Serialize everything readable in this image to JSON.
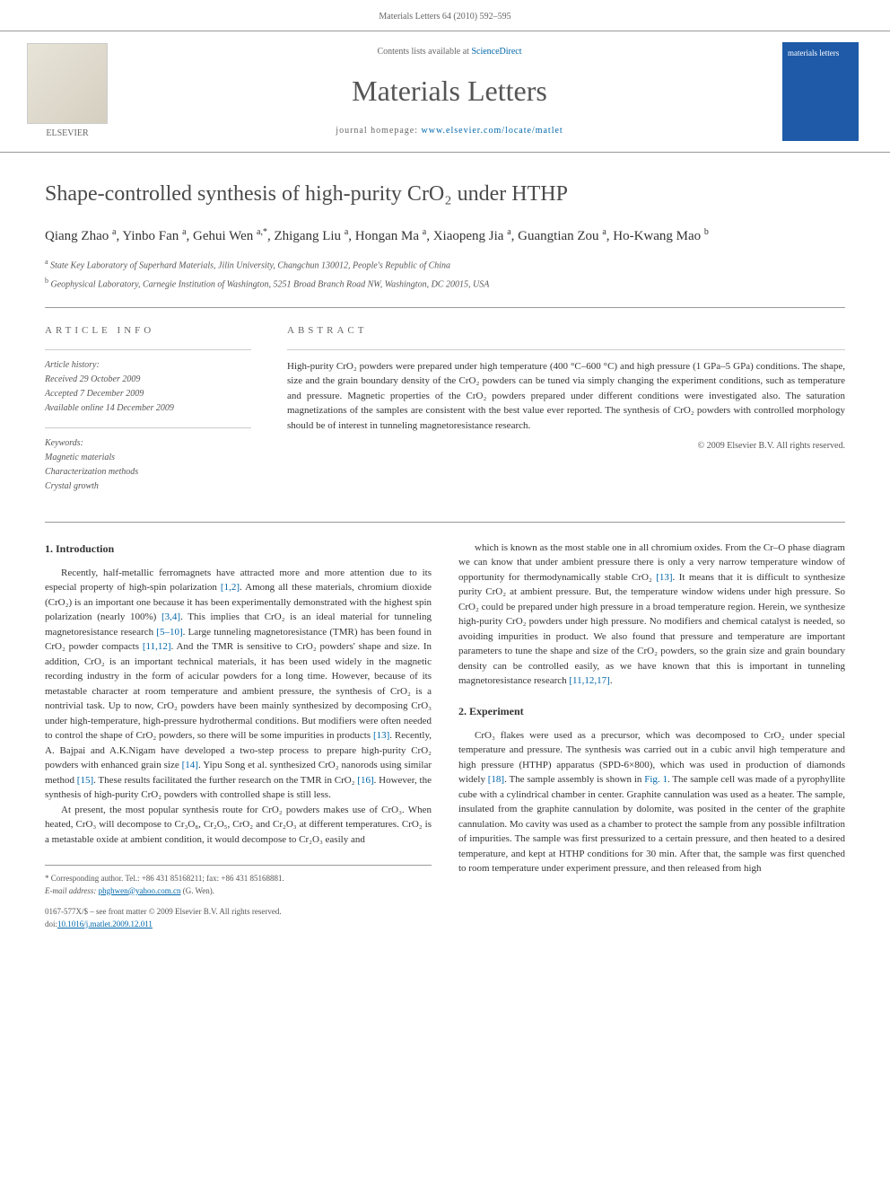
{
  "header": {
    "citation": "Materials Letters 64 (2010) 592–595"
  },
  "banner": {
    "contents_prefix": "Contents lists available at ",
    "contents_link": "ScienceDirect",
    "journal_name": "Materials Letters",
    "homepage_prefix": "journal homepage: ",
    "homepage_url": "www.elsevier.com/locate/matlet",
    "publisher_label": "ELSEVIER",
    "cover_label": "materials letters"
  },
  "article": {
    "title": "Shape-controlled synthesis of high-purity CrO₂ under HTHP",
    "authors_html": "Qiang Zhao <sup>a</sup>, Yinbo Fan <sup>a</sup>, Gehui Wen <sup>a,*</sup>, Zhigang Liu <sup>a</sup>, Hongan Ma <sup>a</sup>, Xiaopeng Jia <sup>a</sup>, Guangtian Zou <sup>a</sup>, Ho-Kwang Mao <sup>b</sup>",
    "affiliations": [
      {
        "sup": "a",
        "text": "State Key Laboratory of Superhard Materials, Jilin University, Changchun 130012, People's Republic of China"
      },
      {
        "sup": "b",
        "text": "Geophysical Laboratory, Carnegie Institution of Washington, 5251 Broad Branch Road NW, Washington, DC 20015, USA"
      }
    ]
  },
  "info": {
    "label": "ARTICLE INFO",
    "history_title": "Article history:",
    "history": [
      "Received 29 October 2009",
      "Accepted 7 December 2009",
      "Available online 14 December 2009"
    ],
    "keywords_title": "Keywords:",
    "keywords": [
      "Magnetic materials",
      "Characterization methods",
      "Crystal growth"
    ]
  },
  "abstract": {
    "label": "ABSTRACT",
    "text": "High-purity CrO₂ powders were prepared under high temperature (400 °C–600 °C) and high pressure (1 GPa–5 GPa) conditions. The shape, size and the grain boundary density of the CrO₂ powders can be tuned via simply changing the experiment conditions, such as temperature and pressure. Magnetic properties of the CrO₂ powders prepared under different conditions were investigated also. The saturation magnetizations of the samples are consistent with the best value ever reported. The synthesis of CrO₂ powders with controlled morphology should be of interest in tunneling magnetoresistance research.",
    "copyright": "© 2009 Elsevier B.V. All rights reserved."
  },
  "sections": {
    "intro_heading": "1. Introduction",
    "intro_p1": "Recently, half-metallic ferromagnets have attracted more and more attention due to its especial property of high-spin polarization [1,2]. Among all these materials, chromium dioxide (CrO₂) is an important one because it has been experimentally demonstrated with the highest spin polarization (nearly 100%) [3,4]. This implies that CrO₂ is an ideal material for tunneling magnetoresistance research [5–10]. Large tunneling magnetoresistance (TMR) has been found in CrO₂ powder compacts [11,12]. And the TMR is sensitive to CrO₂ powders' shape and size. In addition, CrO₂ is an important technical materials, it has been used widely in the magnetic recording industry in the form of acicular powders for a long time. However, because of its metastable character at room temperature and ambient pressure, the synthesis of CrO₂ is a nontrivial task. Up to now, CrO₂ powders have been mainly synthesized by decomposing CrO₃ under high-temperature, high-pressure hydrothermal conditions. But modifiers were often needed to control the shape of CrO₂ powders, so there will be some impurities in products [13]. Recently, A. Bajpai and A.K.Nigam have developed a two-step process to prepare high-purity CrO₂ powders with enhanced grain size [14]. Yipu Song et al. synthesized CrO₂ nanorods using similar method [15]. These results facilitated the further research on the TMR in CrO₂ [16]. However, the synthesis of high-purity CrO₂ powders with controlled shape is still less.",
    "intro_p2": "At present, the most popular synthesis route for CrO₂ powders makes use of CrO₃. When heated, CrO₃ will decompose to Cr₃O₈, Cr₂O₅, CrO₂ and Cr₂O₃ at different temperatures. CrO₂ is a metastable oxide at ambient condition, it would decompose to Cr₂O₃ easily and",
    "intro_p3": "which is known as the most stable one in all chromium oxides. From the Cr–O phase diagram we can know that under ambient pressure there is only a very narrow temperature window of opportunity for thermodynamically stable CrO₂ [13]. It means that it is difficult to synthesize purity CrO₂ at ambient pressure. But, the temperature window widens under high pressure. So CrO₂ could be prepared under high pressure in a broad temperature region. Herein, we synthesize high-purity CrO₂ powders under high pressure. No modifiers and chemical catalyst is needed, so avoiding impurities in product. We also found that pressure and temperature are important parameters to tune the shape and size of the CrO₂ powders, so the grain size and grain boundary density can be controlled easily, as we have known that this is important in tunneling magnetoresistance research [11,12,17].",
    "exp_heading": "2. Experiment",
    "exp_p1": "CrO₃ flakes were used as a precursor, which was decomposed to CrO₂ under special temperature and pressure. The synthesis was carried out in a cubic anvil high temperature and high pressure (HTHP) apparatus (SPD-6×800), which was used in production of diamonds widely [18]. The sample assembly is shown in Fig. 1. The sample cell was made of a pyrophyllite cube with a cylindrical chamber in center. Graphite cannulation was used as a heater. The sample, insulated from the graphite cannulation by dolomite, was posited in the center of the graphite cannulation. Mo cavity was used as a chamber to protect the sample from any possible infiltration of impurities. The sample was first pressurized to a certain pressure, and then heated to a desired temperature, and kept at HTHP conditions for 30 min. After that, the sample was first quenched to room temperature under experiment pressure, and then released from high"
  },
  "footer": {
    "corresponding": "* Corresponding author. Tel.: +86 431 85168211; fax: +86 431 85168881.",
    "email_label": "E-mail address:",
    "email": "phghwen@yahoo.com.cn",
    "email_author": "(G. Wen).",
    "front_matter": "0167-577X/$ – see front matter © 2009 Elsevier B.V. All rights reserved.",
    "doi_prefix": "doi:",
    "doi": "10.1016/j.matlet.2009.12.011"
  },
  "colors": {
    "link": "#0066aa",
    "text": "#333333",
    "muted": "#666666",
    "rule": "#999999",
    "cover_bg": "#1e5aa8"
  }
}
